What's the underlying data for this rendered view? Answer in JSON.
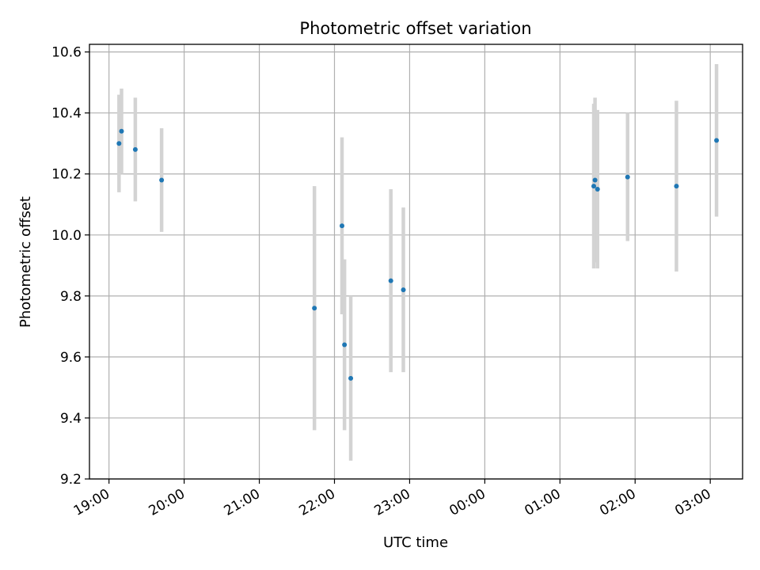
{
  "chart_data": {
    "type": "scatter",
    "title": "Photometric offset variation",
    "xlabel": "UTC time",
    "ylabel": "Photometric offset",
    "x_ticks": [
      "19:00",
      "20:00",
      "21:00",
      "22:00",
      "23:00",
      "00:00",
      "01:00",
      "02:00",
      "03:00"
    ],
    "x_tick_hours": [
      0,
      1,
      2,
      3,
      4,
      5,
      6,
      7,
      8
    ],
    "x_unit_note": "",
    "xlim_hours": [
      -0.26,
      8.43
    ],
    "y_ticks": [
      9.2,
      9.4,
      9.6,
      9.8,
      10.0,
      10.2,
      10.4,
      10.6
    ],
    "ylim": [
      9.2,
      10.625
    ],
    "grid": true,
    "colors": {
      "point": "#1f77b4",
      "errorbar": "#d3d3d3",
      "grid": "#b0b0b0"
    },
    "points": [
      {
        "time": "19:08",
        "y": 10.3,
        "err": 0.16
      },
      {
        "time": "19:10",
        "y": 10.34,
        "err": 0.14
      },
      {
        "time": "19:21",
        "y": 10.28,
        "err": 0.17
      },
      {
        "time": "19:42",
        "y": 10.18,
        "err": 0.17
      },
      {
        "time": "21:44",
        "y": 9.76,
        "err": 0.4
      },
      {
        "time": "22:06",
        "y": 10.03,
        "err": 0.29
      },
      {
        "time": "22:08",
        "y": 9.64,
        "err": 0.28
      },
      {
        "time": "22:13",
        "y": 9.53,
        "err": 0.27
      },
      {
        "time": "22:45",
        "y": 9.85,
        "err": 0.3
      },
      {
        "time": "22:55",
        "y": 9.82,
        "err": 0.27
      },
      {
        "time": "01:27",
        "y": 10.16,
        "err": 0.27
      },
      {
        "time": "01:28",
        "y": 10.18,
        "err": 0.27
      },
      {
        "time": "01:30",
        "y": 10.15,
        "err": 0.26
      },
      {
        "time": "01:54",
        "y": 10.19,
        "err": 0.21
      },
      {
        "time": "02:33",
        "y": 10.16,
        "err": 0.28
      },
      {
        "time": "03:05",
        "y": 10.31,
        "err": 0.25
      }
    ]
  }
}
